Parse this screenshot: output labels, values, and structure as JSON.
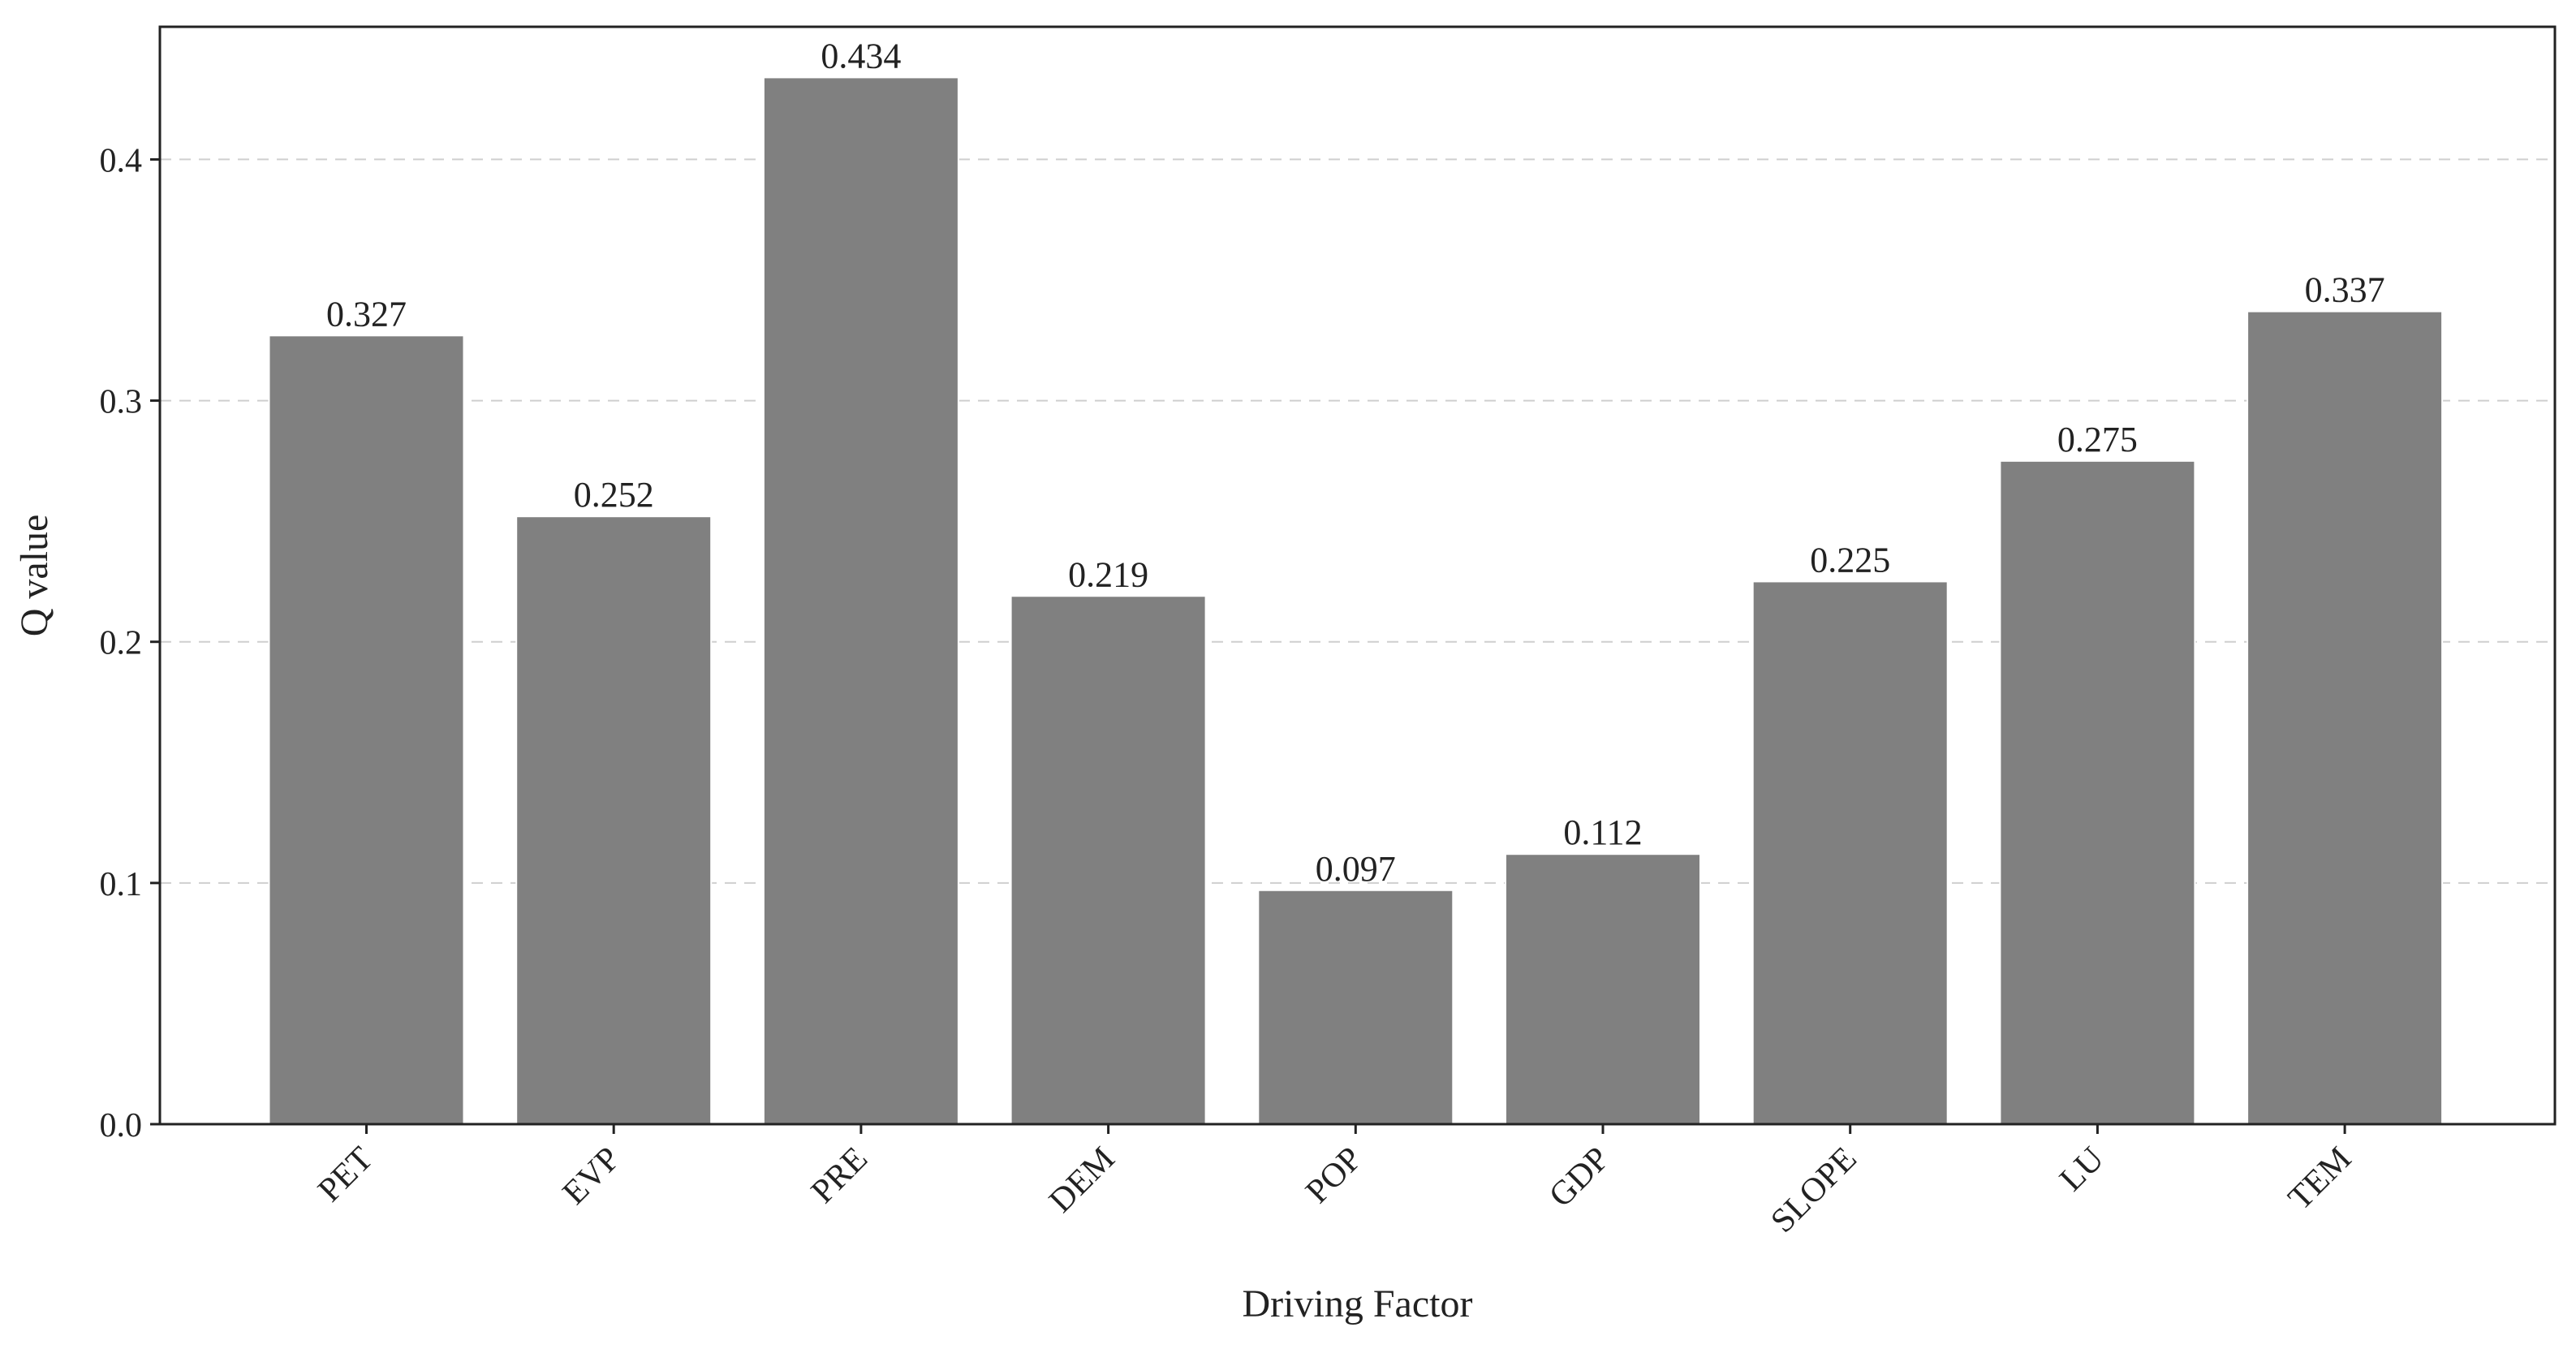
{
  "chart_data": {
    "type": "bar",
    "title": "",
    "xlabel": "Driving Factor",
    "ylabel": "Q value",
    "categories": [
      "PET",
      "EVP",
      "PRE",
      "DEM",
      "POP",
      "GDP",
      "SLOPE",
      "LU",
      "TEM"
    ],
    "values": [
      0.327,
      0.252,
      0.434,
      0.219,
      0.097,
      0.112,
      0.225,
      0.275,
      0.337
    ],
    "data_labels": [
      "0.327",
      "0.252",
      "0.434",
      "0.219",
      "0.097",
      "0.112",
      "0.225",
      "0.275",
      "0.337"
    ],
    "ylim": [
      0,
      0.455
    ],
    "yticks": [
      0.0,
      0.1,
      0.2,
      0.3,
      0.4
    ],
    "ytick_labels": [
      "0.0",
      "0.1",
      "0.2",
      "0.3",
      "0.4"
    ],
    "grid": "y-dashed",
    "legend": "none",
    "bar_color": "#808080",
    "x_tick_rotation_deg": -45
  }
}
